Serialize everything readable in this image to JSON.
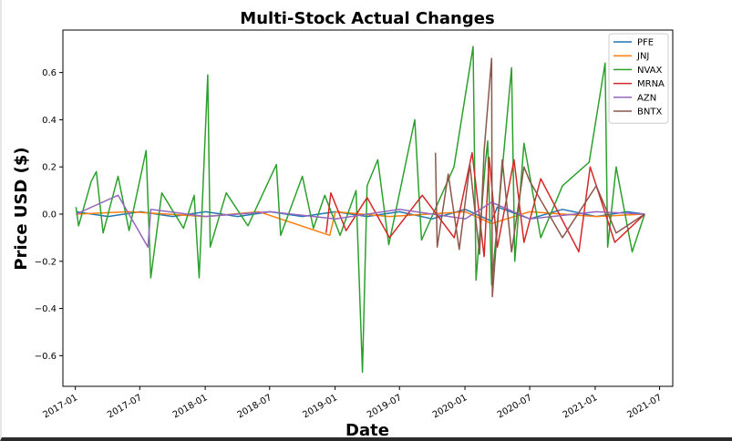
{
  "chart_data": {
    "type": "line",
    "title": "Multi-Stock Actual Changes",
    "xlabel": "Date",
    "ylabel": "Price USD ($)",
    "xlim": [
      "2016-11-27",
      "2021-08-07"
    ],
    "ylim": [
      -0.73,
      0.78
    ],
    "x_ticks": [
      "2017-01",
      "2017-07",
      "2018-01",
      "2018-07",
      "2019-01",
      "2019-07",
      "2020-01",
      "2020-07",
      "2021-01",
      "2021-07"
    ],
    "y_ticks": [
      -0.6,
      -0.4,
      -0.2,
      0.0,
      0.2,
      0.4,
      0.6
    ],
    "y_tick_labels": [
      "−0.6",
      "−0.4",
      "−0.2",
      "0.0",
      "0.2",
      "0.4",
      "0.6"
    ],
    "legend_position": "top-right",
    "grid": false,
    "series": [
      {
        "name": "PFE",
        "color": "#1f77b4",
        "points": [
          [
            "2017-01-03",
            0.01
          ],
          [
            "2017-04-03",
            -0.01
          ],
          [
            "2017-07-03",
            0.01
          ],
          [
            "2017-10-02",
            -0.01
          ],
          [
            "2018-01-02",
            0.01
          ],
          [
            "2018-04-02",
            -0.01
          ],
          [
            "2018-07-02",
            0.01
          ],
          [
            "2018-10-01",
            -0.01
          ],
          [
            "2019-01-02",
            0.01
          ],
          [
            "2019-04-01",
            -0.01
          ],
          [
            "2019-07-01",
            0.01
          ],
          [
            "2019-10-01",
            -0.02
          ],
          [
            "2020-01-02",
            0.02
          ],
          [
            "2020-03-16",
            -0.03
          ],
          [
            "2020-04-01",
            0.03
          ],
          [
            "2020-07-01",
            -0.02
          ],
          [
            "2020-10-01",
            0.02
          ],
          [
            "2021-01-04",
            -0.01
          ],
          [
            "2021-04-01",
            0.01
          ],
          [
            "2021-05-20",
            0.0
          ]
        ]
      },
      {
        "name": "JNJ",
        "color": "#ff7f0e",
        "points": [
          [
            "2017-01-03",
            0.0
          ],
          [
            "2017-06-01",
            0.01
          ],
          [
            "2018-01-02",
            -0.01
          ],
          [
            "2018-06-01",
            0.01
          ],
          [
            "2018-12-17",
            -0.09
          ],
          [
            "2019-01-02",
            0.01
          ],
          [
            "2019-06-03",
            -0.01
          ],
          [
            "2020-01-02",
            0.01
          ],
          [
            "2020-03-16",
            -0.04
          ],
          [
            "2020-07-01",
            0.01
          ],
          [
            "2021-01-04",
            -0.01
          ],
          [
            "2021-05-20",
            0.0
          ]
        ]
      },
      {
        "name": "NVAX",
        "color": "#2ca02c",
        "points": [
          [
            "2017-01-03",
            0.03
          ],
          [
            "2017-01-10",
            -0.05
          ],
          [
            "2017-02-15",
            0.14
          ],
          [
            "2017-03-01",
            0.18
          ],
          [
            "2017-03-20",
            -0.08
          ],
          [
            "2017-05-01",
            0.16
          ],
          [
            "2017-06-01",
            -0.07
          ],
          [
            "2017-07-19",
            0.27
          ],
          [
            "2017-08-01",
            -0.27
          ],
          [
            "2017-09-01",
            0.09
          ],
          [
            "2017-11-01",
            -0.06
          ],
          [
            "2017-12-01",
            0.08
          ],
          [
            "2017-12-15",
            -0.27
          ],
          [
            "2018-01-08",
            0.59
          ],
          [
            "2018-01-15",
            -0.14
          ],
          [
            "2018-03-01",
            0.09
          ],
          [
            "2018-05-01",
            -0.05
          ],
          [
            "2018-07-20",
            0.21
          ],
          [
            "2018-08-01",
            -0.09
          ],
          [
            "2018-10-01",
            0.16
          ],
          [
            "2018-11-01",
            -0.06
          ],
          [
            "2018-12-03",
            0.08
          ],
          [
            "2019-01-15",
            -0.09
          ],
          [
            "2019-03-01",
            0.1
          ],
          [
            "2019-03-19",
            -0.67
          ],
          [
            "2019-04-01",
            0.12
          ],
          [
            "2019-05-01",
            0.23
          ],
          [
            "2019-06-01",
            -0.13
          ],
          [
            "2019-08-13",
            0.4
          ],
          [
            "2019-09-01",
            -0.11
          ],
          [
            "2019-12-01",
            0.2
          ],
          [
            "2020-01-24",
            0.71
          ],
          [
            "2020-02-01",
            -0.28
          ],
          [
            "2020-02-27",
            0.21
          ],
          [
            "2020-03-05",
            0.31
          ],
          [
            "2020-03-16",
            -0.3
          ],
          [
            "2020-05-11",
            0.62
          ],
          [
            "2020-05-20",
            -0.2
          ],
          [
            "2020-06-15",
            0.3
          ],
          [
            "2020-08-01",
            -0.1
          ],
          [
            "2020-10-01",
            0.12
          ],
          [
            "2020-12-15",
            0.22
          ],
          [
            "2021-01-29",
            0.64
          ],
          [
            "2021-02-05",
            -0.14
          ],
          [
            "2021-03-01",
            0.2
          ],
          [
            "2021-04-15",
            -0.16
          ],
          [
            "2021-05-20",
            0.0
          ]
        ]
      },
      {
        "name": "MRNA",
        "color": "#d62728",
        "points": [
          [
            "2018-12-07",
            -0.08
          ],
          [
            "2018-12-20",
            0.09
          ],
          [
            "2019-02-01",
            -0.07
          ],
          [
            "2019-04-01",
            0.07
          ],
          [
            "2019-06-03",
            -0.1
          ],
          [
            "2019-09-03",
            0.08
          ],
          [
            "2019-12-02",
            -0.1
          ],
          [
            "2020-01-21",
            0.26
          ],
          [
            "2020-02-24",
            -0.18
          ],
          [
            "2020-03-09",
            0.24
          ],
          [
            "2020-04-01",
            -0.14
          ],
          [
            "2020-05-18",
            0.23
          ],
          [
            "2020-06-15",
            -0.12
          ],
          [
            "2020-08-01",
            0.15
          ],
          [
            "2020-11-16",
            -0.16
          ],
          [
            "2020-12-18",
            0.2
          ],
          [
            "2021-02-25",
            -0.12
          ],
          [
            "2021-05-20",
            0.0
          ]
        ]
      },
      {
        "name": "AZN",
        "color": "#9467bd",
        "points": [
          [
            "2017-01-03",
            0.0
          ],
          [
            "2017-05-01",
            0.08
          ],
          [
            "2017-07-24",
            -0.14
          ],
          [
            "2017-08-01",
            0.02
          ],
          [
            "2018-01-02",
            -0.01
          ],
          [
            "2018-07-02",
            0.01
          ],
          [
            "2019-01-02",
            -0.02
          ],
          [
            "2019-07-01",
            0.02
          ],
          [
            "2020-01-02",
            -0.02
          ],
          [
            "2020-03-16",
            0.05
          ],
          [
            "2020-07-01",
            -0.02
          ],
          [
            "2021-01-04",
            0.01
          ],
          [
            "2021-05-20",
            0.0
          ]
        ]
      },
      {
        "name": "BNTX",
        "color": "#8c564b",
        "points": [
          [
            "2019-10-10",
            0.26
          ],
          [
            "2019-10-15",
            -0.14
          ],
          [
            "2019-11-15",
            0.17
          ],
          [
            "2019-12-16",
            -0.15
          ],
          [
            "2020-01-15",
            0.21
          ],
          [
            "2020-02-11",
            -0.17
          ],
          [
            "2020-02-24",
            0.27
          ],
          [
            "2020-03-16",
            0.66
          ],
          [
            "2020-03-18",
            -0.35
          ],
          [
            "2020-04-15",
            0.23
          ],
          [
            "2020-05-11",
            -0.16
          ],
          [
            "2020-06-15",
            0.2
          ],
          [
            "2020-07-01",
            0.14
          ],
          [
            "2020-10-01",
            -0.1
          ],
          [
            "2021-01-04",
            0.12
          ],
          [
            "2021-03-01",
            -0.08
          ],
          [
            "2021-05-20",
            0.0
          ]
        ]
      }
    ]
  }
}
